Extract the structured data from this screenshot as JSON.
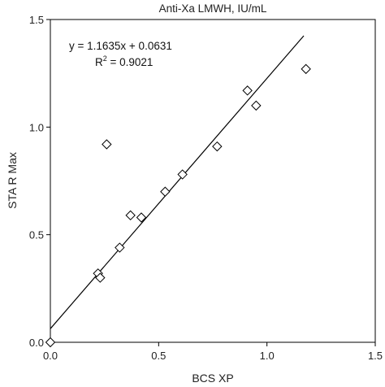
{
  "chart_data": {
    "type": "scatter",
    "title": "Anti-Xa LMWH, IU/mL",
    "xlabel": "BCS XP",
    "ylabel": "STA R Max",
    "xlim": [
      0,
      1.5
    ],
    "ylim": [
      0,
      1.5
    ],
    "xticks": [
      "0.0",
      "0.5",
      "1.0",
      "1.5"
    ],
    "yticks": [
      "0.0",
      "0.5",
      "1.0",
      "1.5"
    ],
    "grid": false,
    "marker": "diamond",
    "points": [
      {
        "x": 0.0,
        "y": 0.0
      },
      {
        "x": 0.22,
        "y": 0.32
      },
      {
        "x": 0.23,
        "y": 0.3
      },
      {
        "x": 0.26,
        "y": 0.92
      },
      {
        "x": 0.32,
        "y": 0.44
      },
      {
        "x": 0.37,
        "y": 0.59
      },
      {
        "x": 0.42,
        "y": 0.58
      },
      {
        "x": 0.53,
        "y": 0.7
      },
      {
        "x": 0.61,
        "y": 0.78
      },
      {
        "x": 0.77,
        "y": 0.91
      },
      {
        "x": 0.91,
        "y": 1.17
      },
      {
        "x": 0.95,
        "y": 1.1
      },
      {
        "x": 1.18,
        "y": 1.27
      }
    ],
    "regression": {
      "slope": 1.1635,
      "intercept": 0.0631,
      "x_range": [
        0,
        1.17
      ],
      "equation_text": "y = 1.1635x + 0.0631",
      "r2_prefix": "R",
      "r2_sup": "2",
      "r2_value": " = 0.9021"
    }
  }
}
